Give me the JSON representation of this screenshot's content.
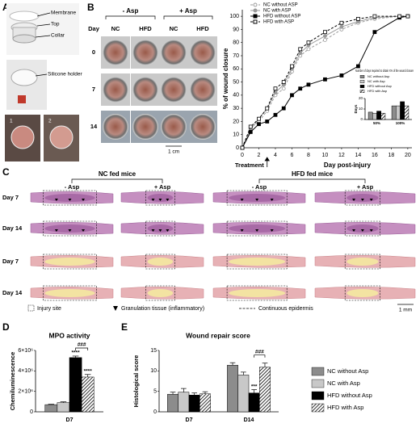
{
  "panel_labels": [
    "A",
    "B",
    "C",
    "D",
    "E"
  ],
  "panel_a": {
    "labels": [
      "Membrane",
      "Top",
      "Collar",
      "Silicone holder"
    ],
    "photo_numbers": [
      "1",
      "2"
    ]
  },
  "panel_b_photos": {
    "groups": [
      "- Asp",
      "+ Asp"
    ],
    "columns": [
      "NC",
      "HFD",
      "NC",
      "HFD"
    ],
    "row_header": "Day",
    "rows": [
      "0",
      "7",
      "14"
    ],
    "scale": "1 cm"
  },
  "panel_c": {
    "groups": [
      "NC fed mice",
      "HFD fed mice"
    ],
    "columns": [
      "- Asp",
      "+ Asp",
      "- Asp",
      "+ Asp"
    ],
    "rows": [
      "Day 7",
      "Day 14",
      "Day 7",
      "Day 14"
    ],
    "legend": [
      "Injury site",
      "Granulation tissue (inflammatory)",
      "Continuous epidermis"
    ],
    "scale": "1 mm"
  },
  "chart_data": [
    {
      "type": "line",
      "ylabel": "% of wound closure",
      "xlabel": "Day post-injury",
      "annotation": "Treatment",
      "treatment_day": 3,
      "x": [
        0,
        1,
        2,
        3,
        4,
        5,
        6,
        7,
        8,
        10,
        12,
        14,
        16,
        19,
        20
      ],
      "xlim": [
        0,
        20.5
      ],
      "xticks": [
        0,
        2,
        4,
        6,
        8,
        10,
        12,
        14,
        16,
        18,
        20
      ],
      "ylim": [
        0,
        105
      ],
      "yticks": [
        0,
        10,
        20,
        30,
        40,
        50,
        60,
        70,
        80,
        90,
        100
      ],
      "legend": "top-left",
      "series": [
        {
          "name": "NC without ASP",
          "color": "#9a9a9a",
          "marker": "circle",
          "dash": true,
          "values": [
            0,
            15,
            20,
            28,
            40,
            45,
            58,
            70,
            75,
            82,
            90,
            95,
            98,
            100,
            100
          ]
        },
        {
          "name": "NC with ASP",
          "color": "#9a9a9a",
          "marker": "circle",
          "dash": false,
          "values": [
            0,
            14,
            22,
            30,
            42,
            48,
            60,
            72,
            78,
            85,
            92,
            96,
            99,
            100,
            100
          ]
        },
        {
          "name": "HFD without ASP",
          "color": "#000000",
          "marker": "square",
          "dash": false,
          "values": [
            0,
            12,
            18,
            20,
            25,
            30,
            40,
            45,
            48,
            52,
            55,
            62,
            88,
            99,
            100
          ]
        },
        {
          "name": "HFD with ASP",
          "color": "#000000",
          "marker": "square",
          "dash": true,
          "values": [
            0,
            16,
            22,
            30,
            45,
            50,
            62,
            75,
            80,
            88,
            95,
            98,
            100,
            100,
            100
          ]
        }
      ]
    },
    {
      "type": "bar",
      "title": "Number of days required to obtain X% of the wound closure",
      "ylabel": "Days",
      "categories": [
        "50%",
        "100%"
      ],
      "ylim": [
        0,
        20
      ],
      "yticks": [
        0,
        10,
        20
      ],
      "legend": "top",
      "series": [
        {
          "name": "NC without Asp",
          "color": "#8c8c8c",
          "values": [
            7,
            13
          ]
        },
        {
          "name": "NC with Asp",
          "color": "#c8c8c8",
          "values": [
            6,
            13
          ]
        },
        {
          "name": "HFD without Asp",
          "color": "#000000",
          "values": [
            8,
            17
          ]
        },
        {
          "name": "HFD with Asp",
          "color": "#000000",
          "pattern": "hatch",
          "values": [
            6,
            13
          ]
        }
      ]
    },
    {
      "type": "bar",
      "title": "MPO activity",
      "ylabel": "Chemiluminescence",
      "categories": [
        "D7"
      ],
      "ylim": [
        0,
        6000000
      ],
      "yticks": [
        0,
        {
          "value": 2000000,
          "label": "2×10⁶"
        },
        {
          "value": 4000000,
          "label": "4×10⁶"
        },
        {
          "value": 6000000,
          "label": "6×10⁶"
        }
      ],
      "series": [
        {
          "name": "NC without Asp",
          "color": "#8c8c8c",
          "values": [
            700000
          ],
          "errors": [
            40000
          ]
        },
        {
          "name": "NC with Asp",
          "color": "#c8c8c8",
          "values": [
            900000
          ],
          "errors": [
            80000
          ]
        },
        {
          "name": "HFD without Asp",
          "color": "#000000",
          "values": [
            5300000
          ],
          "errors": [
            150000
          ],
          "signif": [
            "****"
          ]
        },
        {
          "name": "HFD with Asp",
          "color": "#000000",
          "pattern": "hatch",
          "values": [
            3400000
          ],
          "errors": [
            250000
          ],
          "signif": [
            "****"
          ]
        }
      ],
      "brackets": [
        {
          "label": "###",
          "category": "D7",
          "series": [
            "HFD without Asp",
            "HFD with Asp"
          ]
        }
      ]
    },
    {
      "type": "bar",
      "title": "Wound repair score",
      "ylabel": "Histological score",
      "categories": [
        "D7",
        "D14"
      ],
      "ylim": [
        0,
        15
      ],
      "yticks": [
        0,
        5,
        10,
        15
      ],
      "legend": "right",
      "series": [
        {
          "name": "NC without Asp",
          "color": "#8c8c8c",
          "values": [
            4.3,
            11.4
          ],
          "errors": [
            0.5,
            0.6
          ]
        },
        {
          "name": "NC with Asp",
          "color": "#c8c8c8",
          "values": [
            4.8,
            9.0
          ],
          "errors": [
            0.9,
            0.7
          ]
        },
        {
          "name": "HFD without Asp",
          "color": "#000000",
          "values": [
            4.1,
            4.6
          ],
          "errors": [
            0.5,
            0.8
          ],
          "signif": [
            null,
            "***"
          ]
        },
        {
          "name": "HFD with Asp",
          "color": "#000000",
          "pattern": "hatch",
          "values": [
            4.4,
            10.9
          ],
          "errors": [
            0.5,
            1.0
          ]
        }
      ],
      "brackets": [
        {
          "label": "###",
          "category": "D14",
          "series": [
            "HFD without Asp",
            "HFD with Asp"
          ]
        }
      ]
    }
  ]
}
